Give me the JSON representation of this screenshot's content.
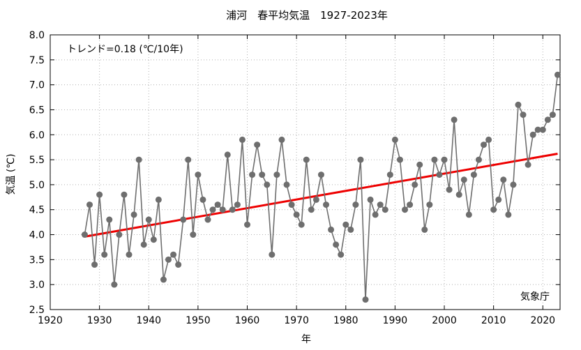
{
  "chart_data": {
    "type": "line",
    "title": "浦河　春平均気温　1927-2023年",
    "xlabel": "年",
    "ylabel": "気温 (℃)",
    "trend_label": "トレンド=0.18 (℃/10年)",
    "source": "気象庁",
    "xlim": [
      1920,
      2023.5
    ],
    "ylim": [
      2.5,
      8.0
    ],
    "x_ticks": [
      1920,
      1930,
      1940,
      1950,
      1960,
      1970,
      1980,
      1990,
      2000,
      2010,
      2020
    ],
    "y_ticks": [
      2.5,
      3.0,
      3.5,
      4.0,
      4.5,
      5.0,
      5.5,
      6.0,
      6.5,
      7.0,
      7.5,
      8.0
    ],
    "grid": true,
    "colors": {
      "series": "#6e6e6e",
      "trend": "#ee0000"
    },
    "series": [
      {
        "x": [
          1927,
          1928,
          1929,
          1930,
          1931,
          1932,
          1933,
          1934,
          1935,
          1936,
          1937,
          1938,
          1939,
          1940,
          1941,
          1942,
          1943,
          1944,
          1945,
          1946,
          1947,
          1948,
          1949,
          1950,
          1951,
          1952,
          1953,
          1954,
          1955,
          1956,
          1957,
          1958,
          1959,
          1960,
          1961,
          1962,
          1963,
          1964,
          1965,
          1966,
          1967,
          1968,
          1969,
          1970,
          1971,
          1972,
          1973,
          1974,
          1975,
          1976,
          1977,
          1978,
          1979,
          1980,
          1981,
          1982,
          1983,
          1984,
          1985,
          1986,
          1987,
          1988,
          1989,
          1990,
          1991,
          1992,
          1993,
          1994,
          1995,
          1996,
          1997,
          1998,
          1999,
          2000,
          2001,
          2002,
          2003,
          2004,
          2005,
          2006,
          2007,
          2008,
          2009,
          2010,
          2011,
          2012,
          2013,
          2014,
          2015,
          2016,
          2017,
          2018,
          2019,
          2020,
          2021,
          2022,
          2023
        ],
        "values": [
          4.0,
          4.6,
          3.4,
          4.8,
          3.6,
          4.3,
          3.0,
          4.0,
          4.8,
          3.6,
          4.4,
          5.5,
          3.8,
          4.3,
          3.9,
          4.7,
          3.1,
          3.5,
          3.6,
          3.4,
          4.3,
          5.5,
          4.0,
          5.2,
          4.7,
          4.3,
          4.5,
          4.6,
          4.5,
          5.6,
          4.5,
          4.6,
          5.9,
          4.2,
          5.2,
          5.8,
          5.2,
          5.0,
          3.6,
          5.2,
          5.9,
          5.0,
          4.6,
          4.4,
          4.2,
          5.5,
          4.5,
          4.7,
          5.2,
          4.6,
          4.1,
          3.8,
          3.6,
          4.2,
          4.1,
          4.6,
          5.5,
          2.7,
          4.7,
          4.4,
          4.6,
          4.5,
          5.2,
          5.9,
          5.5,
          4.5,
          4.6,
          5.0,
          5.4,
          4.1,
          4.6,
          5.5,
          5.2,
          5.5,
          4.9,
          6.3,
          4.8,
          5.1,
          4.4,
          5.2,
          5.5,
          5.8,
          5.9,
          4.5,
          4.7,
          5.1,
          4.4,
          5.0,
          6.6,
          6.4,
          5.4,
          6.0,
          6.1,
          6.1,
          6.3,
          6.4,
          7.2
        ]
      }
    ],
    "trend": {
      "x": [
        1927,
        2023
      ],
      "y": [
        3.96,
        5.62
      ]
    }
  }
}
